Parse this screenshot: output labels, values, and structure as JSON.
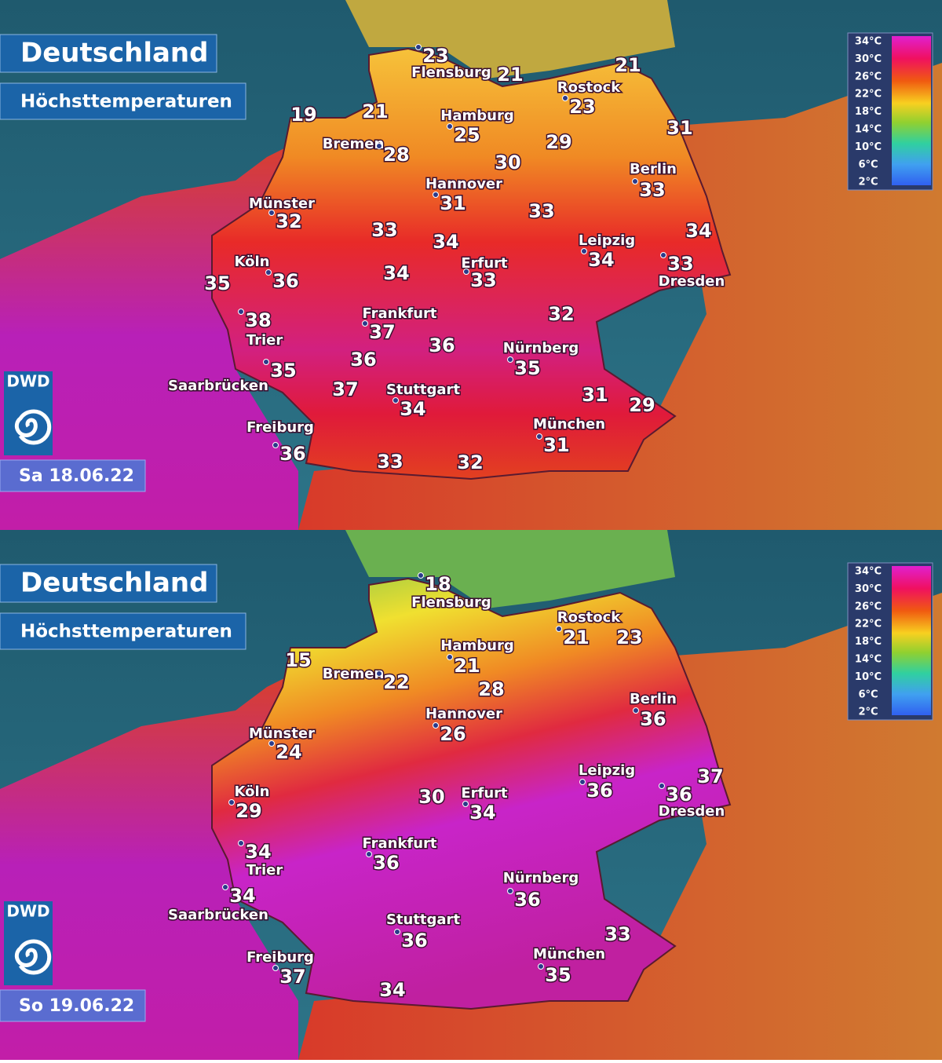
{
  "panels": [
    {
      "title": "Deutschland",
      "subtitle": "Höchsttemperaturen",
      "logo": "DWD",
      "date": "Sa 18.06.22",
      "legend": [
        "34°C",
        "30°C",
        "26°C",
        "22°C",
        "18°C",
        "14°C",
        "10°C",
        "6°C",
        "2°C"
      ],
      "labels": [
        {
          "name": "Flensburg",
          "value": 23
        },
        {
          "value": 21
        },
        {
          "name": "Rostock",
          "value": 23
        },
        {
          "value": 21
        },
        {
          "value": 19
        },
        {
          "value": 21
        },
        {
          "name": "Hamburg",
          "value": 25
        },
        {
          "name": "Bremen",
          "value": 28
        },
        {
          "value": 29
        },
        {
          "value": 31
        },
        {
          "value": 30
        },
        {
          "name": "Berlin",
          "value": 33
        },
        {
          "name": "Hannover",
          "value": 31
        },
        {
          "value": 33
        },
        {
          "name": "Münster",
          "value": 32
        },
        {
          "value": 33
        },
        {
          "value": 34
        },
        {
          "value": 34
        },
        {
          "name": "Leipzig",
          "value": 34
        },
        {
          "name": "Köln",
          "value": 36
        },
        {
          "name": "Erfurt",
          "value": 33
        },
        {
          "name": "Dresden",
          "value": 33
        },
        {
          "value": 35
        },
        {
          "value": 34
        },
        {
          "name": "Frankfurt",
          "value": 37
        },
        {
          "value": 32
        },
        {
          "name": "Trier",
          "value": 38
        },
        {
          "value": 36
        },
        {
          "name": "Nürnberg",
          "value": 35
        },
        {
          "value": 36
        },
        {
          "name": "Saarbrücken",
          "value": 35
        },
        {
          "value": 37
        },
        {
          "name": "Stuttgart",
          "value": 34
        },
        {
          "value": 31
        },
        {
          "value": 29
        },
        {
          "name": "München",
          "value": 31
        },
        {
          "name": "Freiburg",
          "value": 36
        },
        {
          "value": 33
        },
        {
          "value": 32
        }
      ]
    },
    {
      "title": "Deutschland",
      "subtitle": "Höchsttemperaturen",
      "logo": "DWD",
      "date": "So 19.06.22",
      "legend": [
        "34°C",
        "30°C",
        "26°C",
        "22°C",
        "18°C",
        "14°C",
        "10°C",
        "6°C",
        "2°C"
      ],
      "labels": [
        {
          "name": "Flensburg",
          "value": 18
        },
        {
          "name": "Rostock",
          "value": 21
        },
        {
          "value": 23
        },
        {
          "value": 15
        },
        {
          "name": "Hamburg",
          "value": 21
        },
        {
          "name": "Bremen",
          "value": 22
        },
        {
          "value": 28
        },
        {
          "name": "Berlin",
          "value": 36
        },
        {
          "name": "Hannover",
          "value": 26
        },
        {
          "name": "Münster",
          "value": 24
        },
        {
          "value": 37
        },
        {
          "name": "Leipzig",
          "value": 36
        },
        {
          "name": "Dresden",
          "value": 36
        },
        {
          "name": "Köln",
          "value": 29
        },
        {
          "value": 30
        },
        {
          "name": "Erfurt",
          "value": 34
        },
        {
          "name": "Trier",
          "value": 34
        },
        {
          "name": "Frankfurt",
          "value": 36
        },
        {
          "name": "Nürnberg",
          "value": 36
        },
        {
          "name": "Saarbrücken",
          "value": 34
        },
        {
          "name": "Stuttgart",
          "value": 36
        },
        {
          "value": 33
        },
        {
          "name": "München",
          "value": 35
        },
        {
          "name": "Freiburg",
          "value": 37
        },
        {
          "value": 34
        }
      ]
    }
  ]
}
